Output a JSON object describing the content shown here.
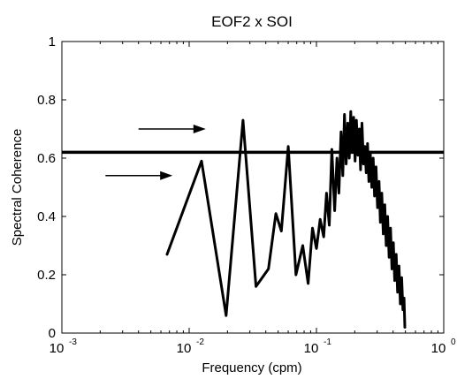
{
  "chart_data": {
    "type": "line",
    "title": "EOF2 x SOI",
    "xlabel": "Frequency (cpm)",
    "ylabel": "Spectral Coherence",
    "xscale": "log",
    "xlim": [
      0.001,
      1
    ],
    "ylim": [
      0,
      1
    ],
    "grid": false,
    "x_tick_labels": [
      {
        "value": 0.001,
        "base": "10",
        "exp": "-3"
      },
      {
        "value": 0.01,
        "base": "10",
        "exp": "-2"
      },
      {
        "value": 0.1,
        "base": "10",
        "exp": "-1"
      },
      {
        "value": 1,
        "base": "10",
        "exp": "0"
      }
    ],
    "y_ticks": [
      0,
      0.2,
      0.4,
      0.6,
      0.8,
      1
    ],
    "y_tick_labels": [
      "0",
      "0.2",
      "0.4",
      "0.6",
      "0.8",
      "1"
    ],
    "threshold": 0.62,
    "series": [
      {
        "x": [
          0.0067,
          0.0125,
          0.0195,
          0.0265,
          0.0335,
          0.042,
          0.048,
          0.053,
          0.06,
          0.069,
          0.078,
          0.086,
          0.093,
          0.1,
          0.107,
          0.114,
          0.12,
          0.126,
          0.132,
          0.139,
          0.145,
          0.15,
          0.156,
          0.161,
          0.166,
          0.171,
          0.176,
          0.181,
          0.186,
          0.191,
          0.196,
          0.201,
          0.206,
          0.212,
          0.217,
          0.222,
          0.228,
          0.234,
          0.24,
          0.246,
          0.252,
          0.258,
          0.265,
          0.272,
          0.279,
          0.286,
          0.294,
          0.302,
          0.31,
          0.318,
          0.326,
          0.335,
          0.344,
          0.353,
          0.362,
          0.372,
          0.382,
          0.392,
          0.402,
          0.412,
          0.423,
          0.434,
          0.445,
          0.456,
          0.467,
          0.478,
          0.488,
          0.495
        ],
        "y": [
          0.27,
          0.59,
          0.06,
          0.73,
          0.16,
          0.22,
          0.41,
          0.35,
          0.64,
          0.2,
          0.3,
          0.17,
          0.36,
          0.29,
          0.39,
          0.33,
          0.48,
          0.37,
          0.63,
          0.42,
          0.6,
          0.48,
          0.69,
          0.54,
          0.75,
          0.58,
          0.72,
          0.6,
          0.76,
          0.62,
          0.74,
          0.59,
          0.73,
          0.61,
          0.7,
          0.56,
          0.72,
          0.58,
          0.64,
          0.55,
          0.65,
          0.52,
          0.62,
          0.5,
          0.6,
          0.47,
          0.57,
          0.43,
          0.52,
          0.38,
          0.48,
          0.34,
          0.44,
          0.3,
          0.4,
          0.26,
          0.36,
          0.22,
          0.31,
          0.18,
          0.27,
          0.14,
          0.23,
          0.1,
          0.19,
          0.08,
          0.12,
          0.02
        ]
      }
    ],
    "annotations": [
      {
        "type": "arrow",
        "from": [
          0.004,
          0.7
        ],
        "to": [
          0.0135,
          0.7
        ]
      },
      {
        "type": "arrow",
        "from": [
          0.0022,
          0.54
        ],
        "to": [
          0.0074,
          0.54
        ]
      }
    ]
  }
}
